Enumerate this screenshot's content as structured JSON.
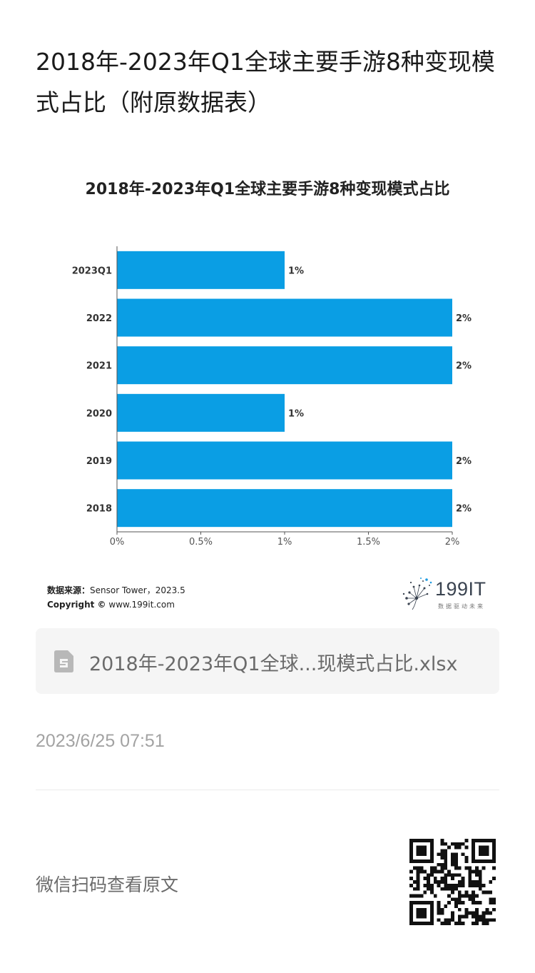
{
  "article": {
    "title": "2018年-2023年Q1全球主要手游8种变现模式占比（附原数据表）"
  },
  "chart_data": {
    "type": "bar",
    "orientation": "horizontal",
    "title": "2018年-2023年Q1全球主要手游8种变现模式占比",
    "categories": [
      "2023Q1",
      "2022",
      "2021",
      "2020",
      "2019",
      "2018"
    ],
    "values": [
      1,
      2,
      2,
      1,
      2,
      2
    ],
    "value_labels": [
      "1%",
      "2%",
      "2%",
      "1%",
      "2%",
      "2%"
    ],
    "xticks": [
      0,
      0.5,
      1,
      1.5,
      2
    ],
    "xtick_labels": [
      "0%",
      "0.5%",
      "1%",
      "1.5%",
      "2%"
    ],
    "xlim": [
      0,
      2
    ],
    "xlabel": "",
    "ylabel": "",
    "grid": false,
    "bar_color": "#0a9ee4"
  },
  "chart_footer": {
    "source_label": "数据来源：",
    "source_value": "Sensor Tower，2023.5",
    "copyright_label": "Copyright ©",
    "copyright_value": "www.199it.com",
    "brand_name": "199IT",
    "brand_tagline": "数据驱动未来"
  },
  "attachment": {
    "icon": "spreadsheet-file-icon",
    "file_name": "2018年-2023年Q1全球...现模式占比.xlsx"
  },
  "meta": {
    "timestamp": "2023/6/25 07:51"
  },
  "qr": {
    "label": "微信扫码查看原文",
    "icon": "qr-code-icon"
  }
}
